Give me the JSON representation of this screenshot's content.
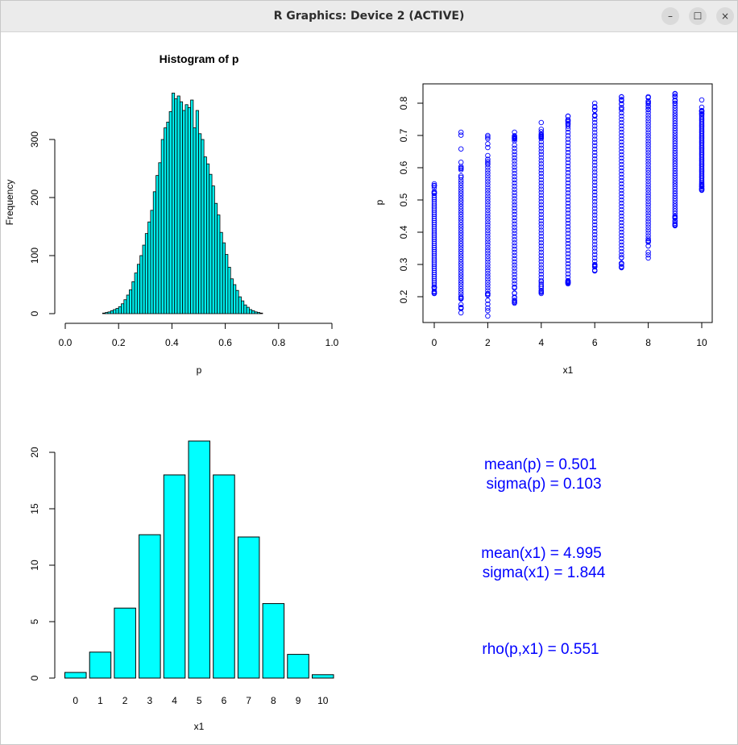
{
  "window": {
    "title": "R Graphics: Device 2 (ACTIVE)",
    "minimize_glyph": "–",
    "maximize_glyph": "☐",
    "close_glyph": "×"
  },
  "colors": {
    "hist_fill": "#00eeee",
    "bar_fill": "#00ffff",
    "scatter_point": "#0000ff",
    "stats_text": "#0000ff",
    "axis": "#000000"
  },
  "chart_data": [
    {
      "type": "bar",
      "title": "Histogram of p",
      "xlabel": "p",
      "ylabel": "Frequency",
      "xlim": [
        0,
        1
      ],
      "ylim": [
        0,
        380
      ],
      "x_ticks": [
        "0.0",
        "0.2",
        "0.4",
        "0.6",
        "0.8",
        "1.0"
      ],
      "y_ticks": [
        "0",
        "100",
        "200",
        "300"
      ],
      "bin_start": 0.14,
      "bin_width": 0.01,
      "values": [
        1,
        2,
        3,
        5,
        7,
        9,
        12,
        17,
        24,
        32,
        41,
        55,
        70,
        85,
        100,
        118,
        138,
        158,
        178,
        210,
        238,
        260,
        300,
        320,
        330,
        348,
        380,
        370,
        375,
        365,
        350,
        360,
        355,
        368,
        320,
        350,
        310,
        300,
        270,
        258,
        240,
        220,
        190,
        170,
        140,
        122,
        102,
        80,
        60,
        50,
        40,
        29,
        22,
        15,
        11,
        7,
        5,
        3,
        2,
        1
      ]
    },
    {
      "type": "scatter",
      "xlabel": "x1",
      "ylabel": "p",
      "xlim": [
        -0.4,
        10.4
      ],
      "ylim": [
        0.12,
        0.85
      ],
      "x_ticks": [
        "0",
        "2",
        "4",
        "6",
        "8",
        "10"
      ],
      "y_ticks": [
        "0.2",
        "0.3",
        "0.4",
        "0.5",
        "0.6",
        "0.7",
        "0.8"
      ],
      "series": [
        {
          "x": [
            0,
            1,
            2,
            3,
            4,
            5,
            6,
            7,
            8,
            9,
            10
          ],
          "p_min": [
            0.21,
            0.15,
            0.14,
            0.18,
            0.21,
            0.24,
            0.28,
            0.29,
            0.32,
            0.42,
            0.53
          ],
          "p_max": [
            0.55,
            0.71,
            0.7,
            0.71,
            0.74,
            0.76,
            0.8,
            0.82,
            0.82,
            0.83,
            0.81
          ],
          "core_min": [
            0.23,
            0.2,
            0.21,
            0.23,
            0.25,
            0.25,
            0.3,
            0.33,
            0.38,
            0.45,
            0.55
          ],
          "core_max": [
            0.52,
            0.57,
            0.61,
            0.67,
            0.69,
            0.72,
            0.76,
            0.78,
            0.78,
            0.8,
            0.76
          ]
        }
      ]
    },
    {
      "type": "bar",
      "xlabel": "x1",
      "ylim": [
        0,
        21
      ],
      "categories": [
        "0",
        "1",
        "2",
        "3",
        "4",
        "5",
        "6",
        "7",
        "8",
        "9",
        "10"
      ],
      "values": [
        0.5,
        2.3,
        6.2,
        12.7,
        18.0,
        21.0,
        18.0,
        12.5,
        6.6,
        2.1,
        0.3
      ],
      "y_ticks": [
        "0",
        "5",
        "10",
        "15",
        "20"
      ]
    }
  ],
  "stats": {
    "mean_p": "mean(p) = 0.501",
    "sigma_p": "sigma(p) =  0.103",
    "mean_x1": "mean(x1) = 4.995",
    "sigma_x1": "sigma(x1) =  1.844",
    "rho": "rho(p,x1) = 0.551"
  }
}
